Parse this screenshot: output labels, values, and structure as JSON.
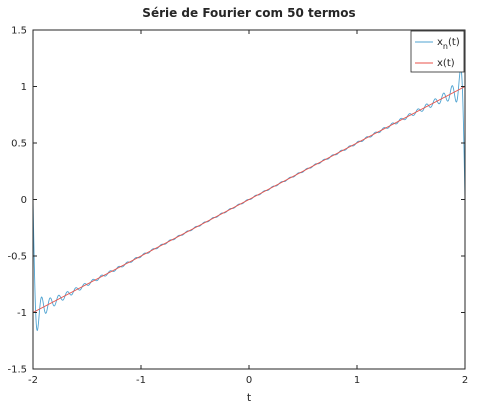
{
  "chart_data": {
    "type": "line",
    "title": "Série de Fourier com 50 termos",
    "xlabel": "t",
    "ylabel": "",
    "xlim": [
      -2,
      2
    ],
    "ylim": [
      -1.5,
      1.5
    ],
    "x_ticks": [
      -2,
      -1,
      0,
      1,
      2
    ],
    "x_tick_labels": [
      "-2",
      "-1",
      "0",
      "1",
      "2"
    ],
    "y_ticks": [
      -1.5,
      -1,
      -0.5,
      0,
      0.5,
      1,
      1.5
    ],
    "y_tick_labels": [
      "-1.5",
      "-1",
      "-0.5",
      "0",
      "0.5",
      "1",
      "1.5"
    ],
    "grid": false,
    "legend_position": "top-right",
    "series": [
      {
        "name": "x_n(t)",
        "legend_main": "x",
        "legend_sub": "n",
        "legend_suffix": "(t)",
        "color": "#4fa3d1",
        "kind": "fourier_partial_sum",
        "terms": 50,
        "period": 4
      },
      {
        "name": "x(t)",
        "legend_main": "x(t)",
        "color": "#e8524a",
        "kind": "ramp",
        "x": [
          -2,
          2
        ],
        "y": [
          -1,
          1
        ]
      }
    ]
  }
}
